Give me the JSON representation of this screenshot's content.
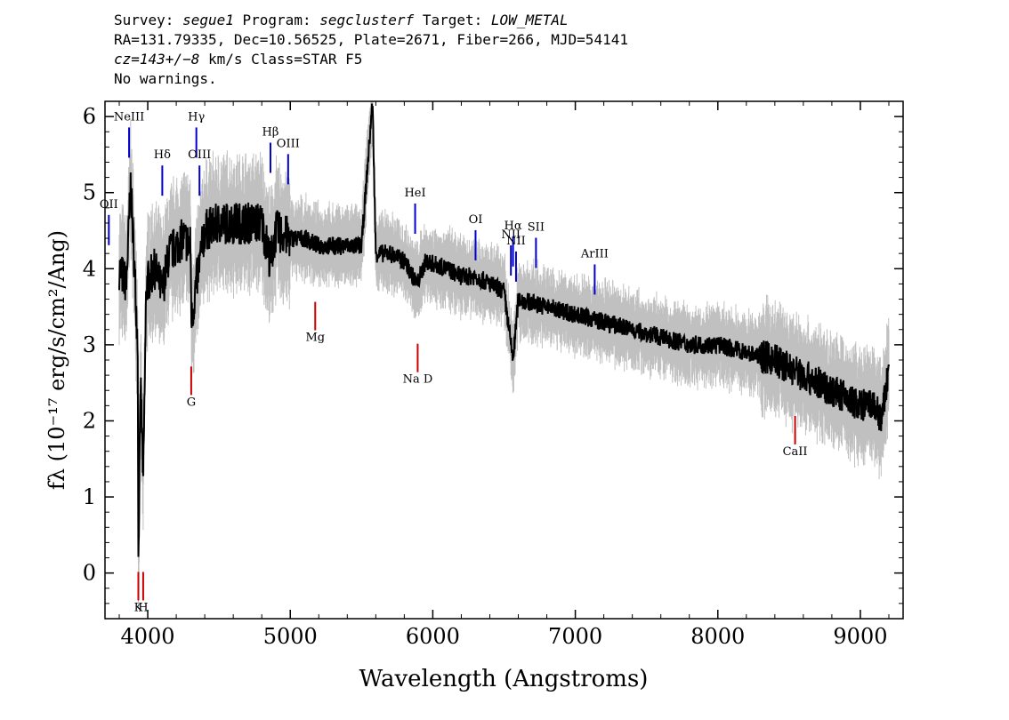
{
  "header": {
    "survey_label": "Survey:",
    "survey": "segue1",
    "program_label": "Program:",
    "program": "segclusterf",
    "target_label": "Target:",
    "target": "LOW_METAL",
    "line2": "RA=131.79335, Dec=10.56525, Plate=2671, Fiber=266, MJD=54141",
    "cz_value": "cz=143+/−8",
    "cz_rest": "km/s Class=STAR F5",
    "warnings": "No warnings."
  },
  "colors": {
    "flux": "#000000",
    "error_band": "#c0c0c0",
    "emission_line": "#0000cc",
    "absorption_line": "#cc0000"
  },
  "chart_data": {
    "type": "line",
    "xlabel": "Wavelength (Angstroms)",
    "ylabel": "fλ (10⁻¹⁷ erg/s/cm²/Ang)",
    "xlim": [
      3700,
      9300
    ],
    "ylim": [
      -0.6,
      6.2
    ],
    "x_ticks": [
      4000,
      5000,
      6000,
      7000,
      8000,
      9000
    ],
    "y_ticks": [
      0,
      1,
      2,
      3,
      4,
      5,
      6
    ],
    "series": [
      {
        "role": "flux",
        "points": [
          [
            3800,
            4.0
          ],
          [
            3850,
            3.8
          ],
          [
            3880,
            5.1
          ],
          [
            3900,
            4.3
          ],
          [
            3930,
            3.0
          ],
          [
            3934,
            0.1
          ],
          [
            3950,
            2.5
          ],
          [
            3968,
            1.2
          ],
          [
            3990,
            3.8
          ],
          [
            4050,
            4.0
          ],
          [
            4101,
            3.7
          ],
          [
            4150,
            4.2
          ],
          [
            4250,
            4.4
          ],
          [
            4300,
            4.3
          ],
          [
            4307,
            3.3
          ],
          [
            4340,
            3.8
          ],
          [
            4400,
            4.5
          ],
          [
            4500,
            4.6
          ],
          [
            4600,
            4.6
          ],
          [
            4700,
            4.6
          ],
          [
            4800,
            4.6
          ],
          [
            4861,
            4.1
          ],
          [
            4900,
            4.5
          ],
          [
            5000,
            4.4
          ],
          [
            5100,
            4.4
          ],
          [
            5200,
            4.3
          ],
          [
            5300,
            4.3
          ],
          [
            5400,
            4.3
          ],
          [
            5500,
            4.3
          ],
          [
            5577,
            6.2
          ],
          [
            5600,
            4.2
          ],
          [
            5700,
            4.2
          ],
          [
            5800,
            4.1
          ],
          [
            5890,
            3.8
          ],
          [
            5950,
            4.1
          ],
          [
            6100,
            4.0
          ],
          [
            6200,
            3.9
          ],
          [
            6300,
            3.9
          ],
          [
            6400,
            3.8
          ],
          [
            6500,
            3.7
          ],
          [
            6563,
            2.8
          ],
          [
            6600,
            3.6
          ],
          [
            6800,
            3.5
          ],
          [
            7000,
            3.4
          ],
          [
            7200,
            3.3
          ],
          [
            7400,
            3.2
          ],
          [
            7600,
            3.1
          ],
          [
            7800,
            3.0
          ],
          [
            8000,
            3.0
          ],
          [
            8200,
            2.9
          ],
          [
            8400,
            2.8
          ],
          [
            8500,
            2.7
          ],
          [
            8600,
            2.6
          ],
          [
            8700,
            2.5
          ],
          [
            8800,
            2.4
          ],
          [
            8900,
            2.3
          ],
          [
            9000,
            2.2
          ],
          [
            9100,
            2.2
          ],
          [
            9150,
            2.0
          ],
          [
            9200,
            2.7
          ]
        ]
      }
    ],
    "emission_lines": [
      {
        "label": "NeIII",
        "x": 3869,
        "text_y": 5.95
      },
      {
        "label": "Hδ",
        "x": 4102,
        "text_y": 5.45
      },
      {
        "label": "Hγ",
        "x": 4341,
        "text_y": 5.95
      },
      {
        "label": "OIII",
        "x": 4363,
        "text_y": 5.45
      },
      {
        "label": "Hβ",
        "x": 4861,
        "text_y": 5.75
      },
      {
        "label": "OIII",
        "x": 4985,
        "text_y": 5.6
      },
      {
        "label": "HeI",
        "x": 5876,
        "text_y": 4.95
      },
      {
        "label": "OI",
        "x": 6300,
        "text_y": 4.6
      },
      {
        "label": "NII",
        "x": 6548,
        "text_y": 4.4
      },
      {
        "label": "Hα",
        "x": 6563,
        "text_y": 4.52
      },
      {
        "label": "SII",
        "x": 6724,
        "text_y": 4.5
      },
      {
        "label": "NII",
        "x": 6584,
        "text_y": 4.32
      },
      {
        "label": "ArIII",
        "x": 7136,
        "text_y": 4.15
      },
      {
        "label": "OII",
        "x": 3727,
        "text_y": 4.8
      }
    ],
    "absorption_lines": [
      {
        "label": "K",
        "x": 3934,
        "text_y": -0.5
      },
      {
        "label": "H",
        "x": 3968,
        "text_y": -0.5
      },
      {
        "label": "G",
        "x": 4305,
        "text_y": 2.2
      },
      {
        "label": "Mg",
        "x": 5175,
        "text_y": 3.05
      },
      {
        "label": "Na D",
        "x": 5894,
        "text_y": 2.5
      },
      {
        "label": "CaII",
        "x": 8542,
        "text_y": 1.55
      }
    ],
    "grid": false,
    "legend": "none"
  }
}
